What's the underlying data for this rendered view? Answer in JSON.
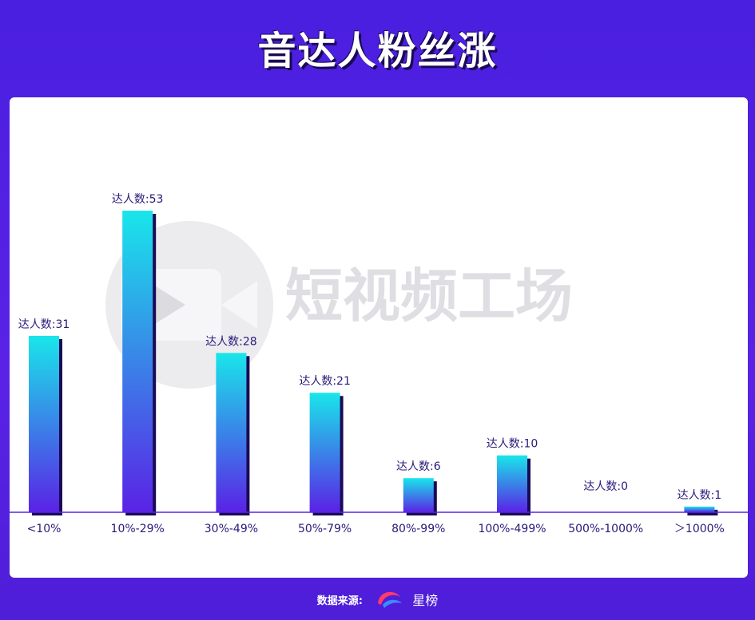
{
  "header": {
    "title": "音达人粉丝涨"
  },
  "watermark": {
    "text": "短视频工场"
  },
  "footer": {
    "label": "数据来源:",
    "brand": "星榜"
  },
  "colors": {
    "bar_top": "#19e6ea",
    "bar_bottom": "#5a22e6",
    "bar_shadow": "#1a0a55",
    "label": "#2a1a7a",
    "axis": "#5a22e6"
  },
  "chart_data": {
    "type": "bar",
    "categories": [
      "<10%",
      "10%-29%",
      "30%-49%",
      "50%-79%",
      "80%-99%",
      "100%-499%",
      "500%-1000%",
      "＞1000%"
    ],
    "values": [
      31,
      53,
      28,
      21,
      6,
      10,
      0,
      1
    ],
    "label_prefix": "达人数:",
    "ylim": [
      0,
      53
    ]
  }
}
